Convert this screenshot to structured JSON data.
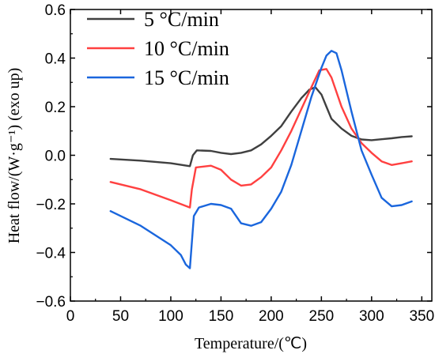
{
  "chart_data": {
    "type": "line",
    "xlabel": "Temperature/(℃)",
    "ylabel": "Heat flow/(W·g⁻¹) (exo up)",
    "xlim": [
      0,
      360
    ],
    "ylim": [
      -0.6,
      0.6
    ],
    "xticks": [
      0,
      50,
      100,
      150,
      200,
      250,
      300,
      350
    ],
    "yticks": [
      -0.6,
      -0.4,
      -0.2,
      0.0,
      0.2,
      0.4,
      0.6
    ],
    "xtick_labels": [
      "0",
      "50",
      "100",
      "150",
      "200",
      "250",
      "300",
      "350"
    ],
    "ytick_labels": [
      "−0.6",
      "−0.4",
      "−0.2",
      "0.0",
      "0.2",
      "0.4",
      "0.6"
    ],
    "legend_position": "top-left",
    "grid": false,
    "series": [
      {
        "name": "5 °C/min",
        "color": "#404040",
        "x": [
          40,
          70,
          100,
          119,
          122,
          126,
          140,
          150,
          160,
          170,
          180,
          190,
          200,
          210,
          220,
          230,
          238,
          244,
          250,
          255,
          260,
          270,
          280,
          290,
          300,
          310,
          320,
          330,
          340
        ],
        "y": [
          -0.015,
          -0.022,
          -0.033,
          -0.045,
          0.0,
          0.02,
          0.018,
          0.01,
          0.005,
          0.01,
          0.02,
          0.045,
          0.08,
          0.12,
          0.18,
          0.235,
          0.27,
          0.28,
          0.25,
          0.2,
          0.15,
          0.11,
          0.08,
          0.065,
          0.062,
          0.066,
          0.07,
          0.075,
          0.078
        ]
      },
      {
        "name": "10 °C/min",
        "color": "#ff4040",
        "x": [
          40,
          70,
          100,
          119,
          121,
          125,
          140,
          150,
          160,
          170,
          180,
          190,
          200,
          210,
          220,
          230,
          240,
          248,
          255,
          260,
          270,
          280,
          290,
          300,
          310,
          320,
          330,
          340
        ],
        "y": [
          -0.11,
          -0.14,
          -0.185,
          -0.215,
          -0.14,
          -0.05,
          -0.043,
          -0.06,
          -0.1,
          -0.125,
          -0.12,
          -0.09,
          -0.05,
          0.02,
          0.1,
          0.19,
          0.28,
          0.35,
          0.355,
          0.32,
          0.2,
          0.11,
          0.05,
          0.01,
          -0.025,
          -0.04,
          -0.033,
          -0.025
        ]
      },
      {
        "name": "15 °C/min",
        "color": "#1a66dd",
        "x": [
          40,
          70,
          100,
          110,
          115,
          119,
          123,
          128,
          140,
          150,
          160,
          170,
          180,
          190,
          200,
          210,
          220,
          230,
          240,
          250,
          255,
          260,
          265,
          270,
          280,
          290,
          300,
          310,
          320,
          330,
          340
        ],
        "y": [
          -0.23,
          -0.29,
          -0.37,
          -0.41,
          -0.45,
          -0.465,
          -0.25,
          -0.215,
          -0.2,
          -0.205,
          -0.22,
          -0.28,
          -0.29,
          -0.275,
          -0.22,
          -0.15,
          -0.04,
          0.1,
          0.24,
          0.36,
          0.41,
          0.43,
          0.42,
          0.35,
          0.18,
          0.02,
          -0.08,
          -0.175,
          -0.21,
          -0.205,
          -0.19
        ]
      }
    ]
  }
}
